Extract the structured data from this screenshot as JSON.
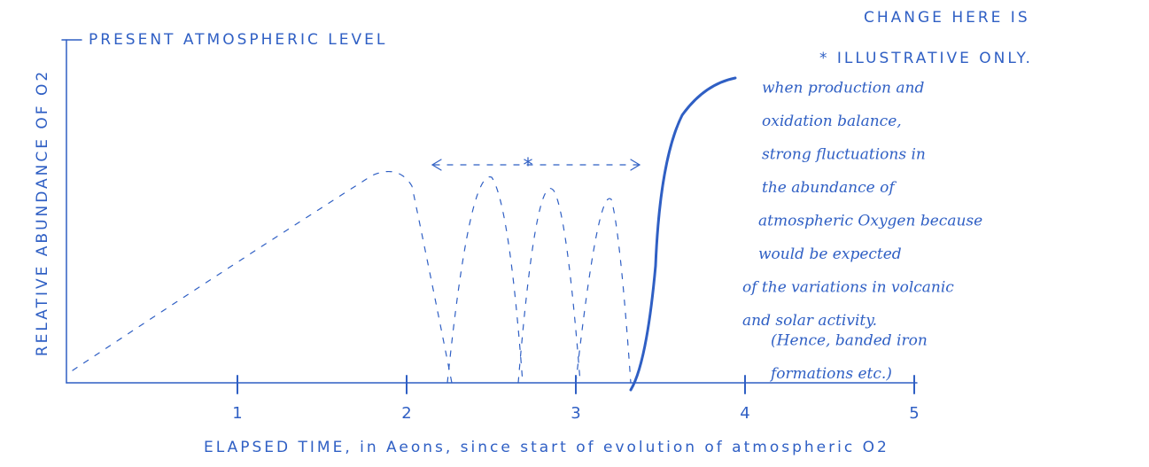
{
  "labels": {
    "present_level": "PRESENT ATMOSPHERIC LEVEL",
    "y_axis": "RELATIVE ABUNDANCE OF O2",
    "x_axis": "ELAPSED TIME, in Aeons, since start of evolution of atmospheric O2",
    "asterisk": "*"
  },
  "x_ticks": [
    "1",
    "2",
    "3",
    "4",
    "5"
  ],
  "note": {
    "heading": [
      "CHANGE HERE IS",
      "* ILLUSTRATIVE ONLY."
    ],
    "lines": [
      "when production and",
      "oxidation balance,",
      "strong fluctuations in",
      "the abundance of",
      "atmospheric Oxygen because",
      "would be expected",
      "of the variations in volcanic",
      "and solar activity.",
      "(Hence, banded iron",
      "formations etc.)"
    ]
  }
}
